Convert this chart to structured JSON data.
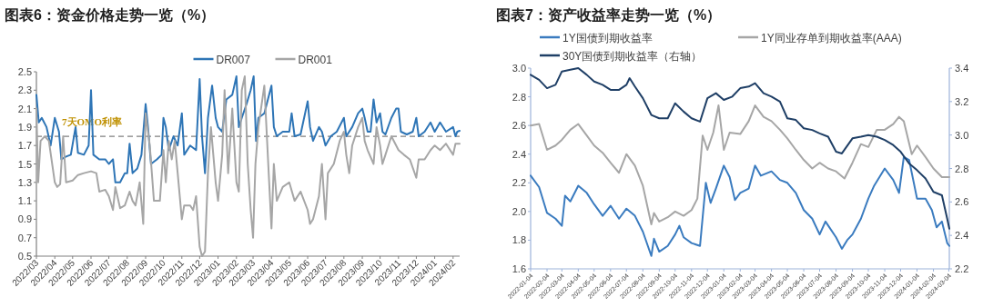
{
  "chart_data": [
    {
      "type": "line",
      "title": "图表6：资金价格走势一览（%）",
      "legend": "top",
      "grid": false,
      "xlim": [
        "2022-03-01",
        "2024-02-12"
      ],
      "xticks": [
        {
          "value": "2022-03-01",
          "label": "2022/03"
        },
        {
          "value": "2022-04-01",
          "label": "2022/04"
        },
        {
          "value": "2022-05-01",
          "label": "2022/05"
        },
        {
          "value": "2022-06-01",
          "label": "2022/06"
        },
        {
          "value": "2022-07-01",
          "label": "2022/07"
        },
        {
          "value": "2022-08-01",
          "label": "2022/08"
        },
        {
          "value": "2022-09-01",
          "label": "2022/09"
        },
        {
          "value": "2022-10-01",
          "label": "2022/10"
        },
        {
          "value": "2022-11-01",
          "label": "2022/11"
        },
        {
          "value": "2022-12-01",
          "label": "2022/12"
        },
        {
          "value": "2023-01-01",
          "label": "2023/01"
        },
        {
          "value": "2023-02-01",
          "label": "2023/02"
        },
        {
          "value": "2023-03-01",
          "label": "2023/03"
        },
        {
          "value": "2023-04-01",
          "label": "2023/04"
        },
        {
          "value": "2023-05-01",
          "label": "2023/05"
        },
        {
          "value": "2023-06-01",
          "label": "2023/06"
        },
        {
          "value": "2023-07-01",
          "label": "2023/07"
        },
        {
          "value": "2023-08-01",
          "label": "2023/08"
        },
        {
          "value": "2023-09-01",
          "label": "2023/09"
        },
        {
          "value": "2023-10-01",
          "label": "2023/10"
        },
        {
          "value": "2023-11-01",
          "label": "2023/11"
        },
        {
          "value": "2023-12-01",
          "label": "2023/12"
        },
        {
          "value": "2024-01-01",
          "label": "2024/01"
        },
        {
          "value": "2024-02-01",
          "label": "2024/02"
        }
      ],
      "ylim": [
        0.5,
        2.5
      ],
      "yticks": [
        0.5,
        0.7,
        0.9,
        1.1,
        1.3,
        1.5,
        1.7,
        1.9,
        2.1,
        2.3,
        2.5
      ],
      "ref_lines": [
        {
          "axis": "y",
          "value": 1.8,
          "label": "7天OMO利率",
          "color": "#808080",
          "line_style": "dashed"
        }
      ],
      "series": [
        {
          "name": "DR007",
          "color": "#2e75b6",
          "x": [
            "2022-03-01",
            "2022-03-05",
            "2022-03-10",
            "2022-03-18",
            "2022-03-25",
            "2022-04-01",
            "2022-04-08",
            "2022-04-12",
            "2022-04-20",
            "2022-04-28",
            "2022-05-02",
            "2022-05-06",
            "2022-05-10",
            "2022-05-20",
            "2022-05-28",
            "2022-06-01",
            "2022-06-05",
            "2022-06-15",
            "2022-06-25",
            "2022-07-01",
            "2022-07-08",
            "2022-07-12",
            "2022-07-20",
            "2022-07-28",
            "2022-08-01",
            "2022-08-05",
            "2022-08-10",
            "2022-08-18",
            "2022-08-25",
            "2022-09-01",
            "2022-09-05",
            "2022-09-10",
            "2022-09-20",
            "2022-09-28",
            "2022-10-01",
            "2022-10-05",
            "2022-10-10",
            "2022-10-18",
            "2022-10-25",
            "2022-11-01",
            "2022-11-05",
            "2022-11-15",
            "2022-11-25",
            "2022-12-01",
            "2022-12-05",
            "2022-12-10",
            "2022-12-15",
            "2022-12-22",
            "2022-12-28",
            "2023-01-01",
            "2023-01-08",
            "2023-01-15",
            "2023-01-25",
            "2023-02-01",
            "2023-02-05",
            "2023-02-10",
            "2023-02-18",
            "2023-02-25",
            "2023-03-02",
            "2023-03-06",
            "2023-03-10",
            "2023-03-20",
            "2023-04-01",
            "2023-04-05",
            "2023-04-10",
            "2023-04-20",
            "2023-05-01",
            "2023-05-05",
            "2023-05-10",
            "2023-05-20",
            "2023-06-01",
            "2023-06-05",
            "2023-06-10",
            "2023-06-20",
            "2023-06-25",
            "2023-07-01",
            "2023-07-10",
            "2023-07-20",
            "2023-08-01",
            "2023-08-05",
            "2023-08-15",
            "2023-08-25",
            "2023-09-01",
            "2023-09-05",
            "2023-09-10",
            "2023-09-15",
            "2023-09-20",
            "2023-09-25",
            "2023-10-01",
            "2023-10-05",
            "2023-10-10",
            "2023-10-20",
            "2023-10-28",
            "2023-11-01",
            "2023-11-05",
            "2023-11-15",
            "2023-11-25",
            "2023-12-01",
            "2023-12-05",
            "2023-12-15",
            "2023-12-25",
            "2024-01-01",
            "2024-01-10",
            "2024-01-20",
            "2024-02-01",
            "2024-02-05",
            "2024-02-08",
            "2024-02-12"
          ],
          "values": [
            2.25,
            1.95,
            2.0,
            1.9,
            1.7,
            2.0,
            1.85,
            1.55,
            1.58,
            1.6,
            1.75,
            1.9,
            1.62,
            1.6,
            1.7,
            2.3,
            1.6,
            1.55,
            1.55,
            1.5,
            1.55,
            1.3,
            1.3,
            1.4,
            1.4,
            1.72,
            1.4,
            1.45,
            1.6,
            2.15,
            1.9,
            1.5,
            1.55,
            1.6,
            2.0,
            1.9,
            1.65,
            1.8,
            1.7,
            2.05,
            1.6,
            1.7,
            1.65,
            2.42,
            1.8,
            1.4,
            2.0,
            2.35,
            2.0,
            1.9,
            1.85,
            2.2,
            2.25,
            2.45,
            1.9,
            2.0,
            2.15,
            2.3,
            2.45,
            1.75,
            2.0,
            2.05,
            2.35,
            1.9,
            1.8,
            1.85,
            1.85,
            2.05,
            1.8,
            1.82,
            2.18,
            1.9,
            1.75,
            1.9,
            1.85,
            1.7,
            1.8,
            1.85,
            2.0,
            1.8,
            1.9,
            2.05,
            2.1,
            2.0,
            1.85,
            1.85,
            2.2,
            1.95,
            2.05,
            1.85,
            1.82,
            2.0,
            2.1,
            2.1,
            1.85,
            1.82,
            1.85,
            2.0,
            1.8,
            1.85,
            1.95,
            1.85,
            1.95,
            1.85,
            1.9,
            1.8,
            1.85,
            1.86
          ]
        },
        {
          "name": "DR001",
          "color": "#a6a6a6",
          "x": [
            "2022-03-01",
            "2022-03-04",
            "2022-03-08",
            "2022-03-15",
            "2022-03-22",
            "2022-04-01",
            "2022-04-05",
            "2022-04-10",
            "2022-04-15",
            "2022-04-20",
            "2022-05-01",
            "2022-05-10",
            "2022-05-20",
            "2022-06-01",
            "2022-06-10",
            "2022-06-15",
            "2022-06-25",
            "2022-07-01",
            "2022-07-08",
            "2022-07-12",
            "2022-07-20",
            "2022-07-28",
            "2022-08-05",
            "2022-08-10",
            "2022-08-15",
            "2022-08-22",
            "2022-08-28",
            "2022-09-01",
            "2022-09-08",
            "2022-09-15",
            "2022-09-25",
            "2022-10-01",
            "2022-10-05",
            "2022-10-10",
            "2022-10-15",
            "2022-10-20",
            "2022-10-25",
            "2022-11-01",
            "2022-11-05",
            "2022-11-15",
            "2022-11-20",
            "2022-11-25",
            "2022-12-01",
            "2022-12-05",
            "2022-12-10",
            "2022-12-15",
            "2022-12-20",
            "2022-12-28",
            "2023-01-01",
            "2023-01-08",
            "2023-01-12",
            "2023-01-18",
            "2023-01-25",
            "2023-02-01",
            "2023-02-05",
            "2023-02-10",
            "2023-02-15",
            "2023-02-20",
            "2023-02-25",
            "2023-03-01",
            "2023-03-05",
            "2023-03-10",
            "2023-03-20",
            "2023-04-01",
            "2023-04-05",
            "2023-04-10",
            "2023-04-20",
            "2023-05-01",
            "2023-05-10",
            "2023-05-20",
            "2023-06-01",
            "2023-06-05",
            "2023-06-10",
            "2023-06-20",
            "2023-06-25",
            "2023-07-01",
            "2023-07-05",
            "2023-07-15",
            "2023-07-25",
            "2023-08-01",
            "2023-08-05",
            "2023-08-10",
            "2023-08-15",
            "2023-08-25",
            "2023-09-01",
            "2023-09-05",
            "2023-09-10",
            "2023-09-20",
            "2023-09-25",
            "2023-10-01",
            "2023-10-05",
            "2023-10-10",
            "2023-10-20",
            "2023-11-01",
            "2023-11-10",
            "2023-11-20",
            "2023-12-01",
            "2023-12-05",
            "2023-12-15",
            "2023-12-25",
            "2024-01-01",
            "2024-01-10",
            "2024-01-20",
            "2024-02-01",
            "2024-02-05",
            "2024-02-12"
          ],
          "values": [
            2.1,
            1.3,
            1.75,
            1.8,
            1.75,
            1.3,
            1.25,
            1.28,
            1.8,
            1.3,
            1.32,
            1.38,
            1.4,
            1.42,
            1.4,
            1.2,
            1.22,
            1.15,
            1.0,
            1.25,
            1.02,
            1.05,
            1.2,
            1.1,
            1.05,
            1.3,
            0.85,
            2.05,
            1.7,
            1.1,
            1.1,
            1.65,
            1.3,
            1.75,
            1.55,
            1.75,
            1.4,
            0.9,
            1.05,
            1.05,
            1.0,
            1.15,
            0.6,
            0.5,
            0.55,
            1.4,
            1.9,
            1.3,
            1.1,
            1.6,
            2.3,
            1.4,
            2.1,
            1.3,
            1.2,
            2.3,
            2.45,
            1.5,
            1.0,
            0.7,
            1.5,
            1.9,
            2.35,
            0.8,
            1.5,
            1.1,
            1.25,
            1.3,
            1.1,
            1.2,
            1.0,
            0.85,
            0.9,
            1.15,
            1.5,
            0.9,
            1.4,
            1.5,
            1.75,
            1.85,
            1.6,
            1.4,
            1.7,
            1.9,
            2.0,
            1.75,
            1.65,
            1.5,
            1.9,
            1.7,
            1.5,
            1.6,
            1.8,
            1.65,
            1.6,
            1.55,
            1.35,
            1.55,
            1.55,
            1.65,
            1.7,
            1.65,
            1.72,
            1.6,
            1.72,
            1.72
          ]
        }
      ]
    },
    {
      "type": "line",
      "title": "图表7：资产收益率走势一览（%）",
      "legend": "top left",
      "grid": false,
      "xlim": [
        "2022-01-04",
        "2024-03-05"
      ],
      "xticks": [
        "2022-01-04",
        "2022-02-04",
        "2022-03-04",
        "2022-04-04",
        "2022-05-04",
        "2022-06-04",
        "2022-07-04",
        "2022-08-04",
        "2022-09-04",
        "2022-10-04",
        "2022-11-04",
        "2022-12-04",
        "2023-01-04",
        "2023-02-04",
        "2023-03-04",
        "2023-04-04",
        "2023-05-04",
        "2023-06-04",
        "2023-07-04",
        "2023-08-04",
        "2023-09-04",
        "2023-10-04",
        "2023-11-04",
        "2023-12-04",
        "2024-01-04",
        "2024-02-04",
        "2024-03-04"
      ],
      "ylim": [
        1.6,
        3.0
      ],
      "yticks": [
        1.6,
        1.8,
        {
          "value": 2,
          "label": "2.0"
        },
        2.2,
        2.4,
        2.6,
        2.8,
        {
          "value": 3,
          "label": "3.0"
        }
      ],
      "y2lim": [
        2.2,
        3.4
      ],
      "y2ticks": [
        2.2,
        2.4,
        2.6,
        2.8,
        {
          "value": 3,
          "label": "3.0"
        },
        3.2,
        3.4
      ],
      "series": [
        {
          "name": "1Y国债到期收益率",
          "color": "#3a7bbf",
          "x": [
            "2022-01-04",
            "2022-01-20",
            "2022-02-04",
            "2022-02-20",
            "2022-03-04",
            "2022-03-10",
            "2022-03-20",
            "2022-04-04",
            "2022-04-20",
            "2022-05-04",
            "2022-05-20",
            "2022-06-04",
            "2022-06-20",
            "2022-07-04",
            "2022-07-20",
            "2022-08-04",
            "2022-08-20",
            "2022-08-25",
            "2022-09-04",
            "2022-09-20",
            "2022-10-04",
            "2022-10-12",
            "2022-10-20",
            "2022-11-04",
            "2022-11-20",
            "2022-12-01",
            "2022-12-10",
            "2022-12-20",
            "2023-01-04",
            "2023-01-15",
            "2023-01-25",
            "2023-02-04",
            "2023-02-20",
            "2023-03-04",
            "2023-03-15",
            "2023-04-04",
            "2023-04-20",
            "2023-05-04",
            "2023-05-20",
            "2023-06-04",
            "2023-06-20",
            "2023-07-04",
            "2023-07-15",
            "2023-08-04",
            "2023-08-15",
            "2023-08-25",
            "2023-09-04",
            "2023-09-20",
            "2023-10-04",
            "2023-10-15",
            "2023-11-04",
            "2023-11-20",
            "2023-12-01",
            "2023-12-10",
            "2023-12-20",
            "2024-01-04",
            "2024-01-20",
            "2024-02-01",
            "2024-02-10",
            "2024-02-20",
            "2024-03-01",
            "2024-03-05"
          ],
          "values": [
            2.25,
            2.17,
            1.99,
            1.95,
            1.9,
            2.11,
            2.07,
            2.18,
            2.13,
            2.05,
            1.97,
            2.04,
            1.95,
            2.02,
            1.97,
            1.86,
            1.69,
            1.81,
            1.72,
            1.76,
            1.84,
            1.9,
            1.82,
            1.78,
            1.76,
            2.2,
            2.06,
            2.16,
            2.32,
            2.24,
            2.08,
            2.13,
            2.16,
            2.32,
            2.25,
            2.28,
            2.22,
            2.2,
            2.13,
            2.01,
            1.95,
            1.84,
            1.93,
            1.82,
            1.74,
            1.8,
            1.84,
            1.95,
            2.09,
            2.18,
            2.3,
            2.22,
            2.13,
            2.38,
            2.36,
            2.09,
            2.09,
            2.01,
            1.89,
            1.93,
            1.78,
            1.76
          ]
        },
        {
          "name": "1Y同业存单到期收益率(AAA)",
          "color": "#a6a6a6",
          "x": [
            "2022-01-04",
            "2022-01-20",
            "2022-02-04",
            "2022-02-20",
            "2022-03-04",
            "2022-03-20",
            "2022-04-04",
            "2022-04-20",
            "2022-05-04",
            "2022-05-20",
            "2022-06-04",
            "2022-06-20",
            "2022-07-04",
            "2022-07-20",
            "2022-08-04",
            "2022-08-20",
            "2022-08-25",
            "2022-09-04",
            "2022-09-20",
            "2022-10-04",
            "2022-10-20",
            "2022-11-04",
            "2022-11-15",
            "2022-11-25",
            "2022-12-04",
            "2022-12-15",
            "2022-12-25",
            "2023-01-04",
            "2023-01-15",
            "2023-02-04",
            "2023-02-20",
            "2023-03-04",
            "2023-03-20",
            "2023-04-04",
            "2023-04-20",
            "2023-05-04",
            "2023-05-20",
            "2023-06-04",
            "2023-06-20",
            "2023-07-04",
            "2023-07-20",
            "2023-08-04",
            "2023-08-20",
            "2023-09-04",
            "2023-09-20",
            "2023-10-04",
            "2023-10-20",
            "2023-11-04",
            "2023-11-20",
            "2023-12-01",
            "2023-12-10",
            "2023-12-25",
            "2024-01-04",
            "2024-01-20",
            "2024-02-04",
            "2024-02-20",
            "2024-03-05"
          ],
          "values": [
            2.6,
            2.61,
            2.43,
            2.46,
            2.5,
            2.57,
            2.61,
            2.53,
            2.46,
            2.41,
            2.34,
            2.27,
            2.4,
            2.32,
            2.18,
            1.91,
            1.99,
            1.93,
            1.96,
            2.0,
            1.97,
            2.01,
            2.09,
            2.53,
            2.43,
            2.55,
            2.74,
            2.43,
            2.55,
            2.54,
            2.63,
            2.74,
            2.66,
            2.63,
            2.57,
            2.51,
            2.43,
            2.36,
            2.3,
            2.34,
            2.3,
            2.28,
            2.23,
            2.34,
            2.47,
            2.45,
            2.57,
            2.57,
            2.61,
            2.66,
            2.63,
            2.4,
            2.46,
            2.38,
            2.3,
            2.24,
            2.24
          ]
        },
        {
          "name": "30Y国债到期收益率（右轴）",
          "color": "#1f3f66",
          "axis": "y2",
          "x": [
            "2022-01-04",
            "2022-01-20",
            "2022-02-04",
            "2022-02-20",
            "2022-03-04",
            "2022-03-20",
            "2022-04-04",
            "2022-04-20",
            "2022-05-04",
            "2022-05-20",
            "2022-06-04",
            "2022-06-20",
            "2022-07-04",
            "2022-07-10",
            "2022-07-20",
            "2022-08-04",
            "2022-08-20",
            "2022-09-04",
            "2022-09-20",
            "2022-10-04",
            "2022-10-20",
            "2022-11-04",
            "2022-11-20",
            "2022-12-04",
            "2022-12-20",
            "2023-01-04",
            "2023-01-20",
            "2023-02-04",
            "2023-02-20",
            "2023-03-04",
            "2023-03-20",
            "2023-04-04",
            "2023-04-20",
            "2023-05-04",
            "2023-05-20",
            "2023-06-04",
            "2023-06-20",
            "2023-07-04",
            "2023-07-20",
            "2023-08-04",
            "2023-08-15",
            "2023-09-04",
            "2023-09-20",
            "2023-10-04",
            "2023-10-20",
            "2023-11-04",
            "2023-11-20",
            "2023-12-04",
            "2023-12-20",
            "2024-01-04",
            "2024-01-20",
            "2024-02-04",
            "2024-02-20",
            "2024-03-01",
            "2024-03-05"
          ],
          "values": [
            3.36,
            3.33,
            3.28,
            3.3,
            3.38,
            3.39,
            3.4,
            3.36,
            3.32,
            3.3,
            3.27,
            3.27,
            3.3,
            3.34,
            3.29,
            3.22,
            3.12,
            3.1,
            3.1,
            3.19,
            3.14,
            3.1,
            3.08,
            3.22,
            3.25,
            3.21,
            3.23,
            3.28,
            3.29,
            3.31,
            3.25,
            3.23,
            3.2,
            3.1,
            3.09,
            3.04,
            3.03,
            3.01,
            2.99,
            2.9,
            2.89,
            2.98,
            2.99,
            3.0,
            2.99,
            2.97,
            2.94,
            2.9,
            2.83,
            2.79,
            2.74,
            2.66,
            2.64,
            2.5,
            2.44
          ]
        }
      ]
    }
  ]
}
